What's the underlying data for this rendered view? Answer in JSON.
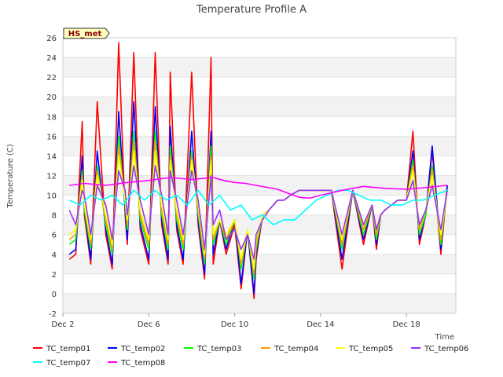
{
  "chart_data": {
    "type": "line",
    "title": "Temperature Profile A",
    "xlabel": "Time",
    "ylabel": "Temperature (C)",
    "badge": "HS_met",
    "x_ticks": [
      "Dec 2",
      "Dec 6",
      "Dec 10",
      "Dec 14",
      "Dec 18"
    ],
    "x_tick_days": [
      0,
      4,
      8,
      12,
      16
    ],
    "xlim": [
      0,
      18.3
    ],
    "ylim": [
      -2,
      26
    ],
    "y_ticks": [
      -2,
      0,
      2,
      4,
      6,
      8,
      10,
      12,
      14,
      16,
      18,
      20,
      22,
      24,
      26
    ],
    "grid": true,
    "legend_position": "bottom",
    "series": [
      {
        "name": "TC_temp01",
        "color": "#ff0000",
        "x": [
          0.3,
          0.6,
          0.9,
          1.0,
          1.3,
          1.6,
          2.0,
          2.3,
          2.6,
          2.9,
          3.0,
          3.3,
          3.6,
          4.0,
          4.3,
          4.6,
          4.9,
          5.0,
          5.3,
          5.6,
          6.0,
          6.3,
          6.6,
          6.9,
          7.0,
          7.3,
          7.6,
          8.0,
          8.3,
          8.6,
          8.9,
          9.0,
          9.3,
          9.6,
          10.0,
          10.3,
          10.6,
          11.0,
          11.5,
          12.0,
          12.5,
          13.0,
          13.5,
          14.0,
          14.4,
          14.6,
          14.8,
          15.0,
          15.3,
          15.6,
          16.0,
          16.3,
          16.6,
          16.9,
          17.2,
          17.6,
          17.9
        ],
        "y": [
          3.5,
          4.0,
          17.5,
          8.0,
          3.0,
          19.5,
          6.0,
          2.5,
          25.5,
          8.0,
          5.0,
          24.5,
          6.5,
          3.0,
          24.5,
          7.0,
          3.0,
          22.5,
          6.5,
          3.0,
          22.5,
          7.0,
          1.5,
          24.0,
          3.0,
          7.5,
          4.0,
          7.0,
          0.5,
          6.5,
          -0.5,
          3.5,
          8.0,
          8.5,
          9.5,
          9.5,
          10.0,
          10.5,
          10.5,
          10.5,
          10.5,
          2.5,
          10.5,
          5.0,
          9.0,
          4.5,
          8.0,
          8.5,
          9.0,
          9.5,
          9.5,
          16.5,
          5.0,
          8.0,
          14.5,
          4.0,
          11.0
        ]
      },
      {
        "name": "TC_temp02",
        "color": "#0000ff",
        "x": [
          0.3,
          0.6,
          0.9,
          1.0,
          1.3,
          1.6,
          2.0,
          2.3,
          2.6,
          2.9,
          3.0,
          3.3,
          3.6,
          4.0,
          4.3,
          4.6,
          4.9,
          5.0,
          5.3,
          5.6,
          6.0,
          6.3,
          6.6,
          6.9,
          7.0,
          7.3,
          7.6,
          8.0,
          8.3,
          8.6,
          8.9,
          9.0,
          9.3,
          9.6,
          10.0,
          10.3,
          10.6,
          11.0,
          11.5,
          12.0,
          12.5,
          13.0,
          13.5,
          14.0,
          14.4,
          14.6,
          14.8,
          15.0,
          15.3,
          15.6,
          16.0,
          16.3,
          16.6,
          16.9,
          17.2,
          17.6,
          17.9
        ],
        "y": [
          4.0,
          4.5,
          14.0,
          8.5,
          3.5,
          14.5,
          6.5,
          3.0,
          18.5,
          8.5,
          5.5,
          19.5,
          7.0,
          3.5,
          19.0,
          7.5,
          3.5,
          17.0,
          7.0,
          3.5,
          16.5,
          7.5,
          2.0,
          16.5,
          4.0,
          7.5,
          4.5,
          7.5,
          1.0,
          6.5,
          0.0,
          4.0,
          8.0,
          8.5,
          9.5,
          9.5,
          10.0,
          10.5,
          10.5,
          10.5,
          10.5,
          3.5,
          10.5,
          5.5,
          9.0,
          5.0,
          8.0,
          8.5,
          9.0,
          9.5,
          9.5,
          14.5,
          5.5,
          8.0,
          15.0,
          4.5,
          11.0
        ]
      },
      {
        "name": "TC_temp03",
        "color": "#00ff00",
        "x": [
          0.3,
          0.6,
          0.9,
          1.0,
          1.3,
          1.6,
          2.0,
          2.3,
          2.6,
          2.9,
          3.0,
          3.3,
          3.6,
          4.0,
          4.3,
          4.6,
          4.9,
          5.0,
          5.3,
          5.6,
          6.0,
          6.3,
          6.6,
          6.9,
          7.0,
          7.3,
          7.6,
          8.0,
          8.3,
          8.6,
          8.9,
          9.0,
          9.3,
          9.6,
          10.0,
          10.3,
          10.6,
          11.0,
          11.5,
          12.0,
          12.5,
          13.0,
          13.5,
          14.0,
          14.4,
          14.6,
          14.8,
          15.0,
          15.3,
          15.6,
          16.0,
          16.3,
          16.6,
          16.9,
          17.2,
          17.6,
          17.9
        ],
        "y": [
          5.0,
          5.5,
          12.5,
          8.5,
          4.5,
          13.0,
          7.0,
          4.0,
          16.0,
          9.0,
          6.5,
          16.5,
          7.5,
          4.5,
          16.5,
          8.0,
          4.5,
          15.0,
          7.5,
          4.5,
          14.5,
          8.0,
          3.0,
          15.0,
          5.0,
          7.5,
          5.0,
          7.5,
          2.5,
          6.5,
          1.5,
          4.5,
          8.0,
          8.5,
          9.5,
          9.5,
          10.0,
          10.5,
          10.5,
          10.5,
          10.5,
          4.5,
          10.5,
          6.0,
          9.0,
          5.5,
          8.0,
          8.5,
          9.0,
          9.5,
          9.5,
          13.5,
          6.0,
          8.0,
          13.0,
          5.0,
          10.5
        ]
      },
      {
        "name": "TC_temp04",
        "color": "#ff9900",
        "x": [
          0.3,
          0.6,
          0.9,
          1.0,
          1.3,
          1.6,
          2.0,
          2.3,
          2.6,
          2.9,
          3.0,
          3.3,
          3.6,
          4.0,
          4.3,
          4.6,
          4.9,
          5.0,
          5.3,
          5.6,
          6.0,
          6.3,
          6.6,
          6.9,
          7.0,
          7.3,
          7.6,
          8.0,
          8.3,
          8.6,
          8.9,
          9.0,
          9.3,
          9.6,
          10.0,
          10.3,
          10.6,
          11.0,
          11.5,
          12.0,
          12.5,
          13.0,
          13.5,
          14.0,
          14.4,
          14.6,
          14.8,
          15.0,
          15.3,
          15.6,
          16.0,
          16.3,
          16.6,
          16.9,
          17.2,
          17.6,
          17.9
        ],
        "y": [
          5.5,
          6.0,
          12.0,
          9.0,
          5.0,
          12.5,
          7.5,
          4.5,
          15.0,
          9.5,
          7.0,
          15.5,
          8.0,
          5.0,
          15.5,
          8.5,
          5.0,
          14.0,
          8.0,
          5.0,
          14.0,
          8.5,
          3.5,
          14.0,
          5.5,
          7.5,
          5.5,
          7.5,
          3.0,
          6.5,
          2.0,
          5.0,
          8.0,
          8.5,
          9.5,
          9.5,
          10.0,
          10.5,
          10.5,
          10.5,
          10.5,
          5.0,
          10.5,
          6.5,
          9.0,
          6.0,
          8.0,
          8.5,
          9.0,
          9.5,
          9.5,
          13.0,
          6.5,
          8.5,
          12.5,
          5.5,
          10.5
        ]
      },
      {
        "name": "TC_temp05",
        "color": "#ffff00",
        "x": [
          0.3,
          0.6,
          0.9,
          1.0,
          1.3,
          1.6,
          2.0,
          2.3,
          2.6,
          2.9,
          3.0,
          3.3,
          3.6,
          4.0,
          4.3,
          4.6,
          4.9,
          5.0,
          5.3,
          5.6,
          6.0,
          6.3,
          6.6,
          6.9,
          7.0,
          7.3,
          7.6,
          8.0,
          8.3,
          8.6,
          8.9,
          9.0,
          9.3,
          9.6,
          10.0,
          10.3,
          10.6,
          11.0,
          11.5,
          12.0,
          12.5,
          13.0,
          13.5,
          14.0,
          14.4,
          14.6,
          14.8,
          15.0,
          15.3,
          15.6,
          16.0,
          16.3,
          16.6,
          16.9,
          17.2,
          17.6,
          17.9
        ],
        "y": [
          6.0,
          6.5,
          11.5,
          9.0,
          5.5,
          12.0,
          8.0,
          5.0,
          14.0,
          9.5,
          7.5,
          14.5,
          8.5,
          5.5,
          14.5,
          9.0,
          5.5,
          13.5,
          8.5,
          5.5,
          13.5,
          9.0,
          4.0,
          13.5,
          6.0,
          7.5,
          6.0,
          7.5,
          3.5,
          6.5,
          2.5,
          5.5,
          8.0,
          8.5,
          9.5,
          9.5,
          10.0,
          10.5,
          10.5,
          10.5,
          10.5,
          5.5,
          10.5,
          7.0,
          9.0,
          6.5,
          8.0,
          8.5,
          9.0,
          9.5,
          9.5,
          12.5,
          7.0,
          8.5,
          12.0,
          6.0,
          10.5
        ]
      },
      {
        "name": "TC_temp06",
        "color": "#9933ff",
        "x": [
          0.3,
          0.6,
          0.9,
          1.0,
          1.3,
          1.6,
          2.0,
          2.3,
          2.6,
          2.9,
          3.0,
          3.3,
          3.6,
          4.0,
          4.3,
          4.6,
          4.9,
          5.0,
          5.3,
          5.6,
          6.0,
          6.3,
          6.6,
          6.9,
          7.0,
          7.3,
          7.6,
          8.0,
          8.3,
          8.6,
          8.9,
          9.0,
          9.3,
          9.6,
          10.0,
          10.3,
          10.6,
          11.0,
          11.5,
          12.0,
          12.5,
          13.0,
          13.5,
          14.0,
          14.4,
          14.6,
          14.8,
          15.0,
          15.3,
          15.6,
          16.0,
          16.3,
          16.6,
          16.9,
          17.2,
          17.6,
          17.9
        ],
        "y": [
          8.5,
          7.0,
          10.5,
          10.0,
          6.0,
          11.0,
          9.0,
          5.5,
          12.5,
          10.5,
          8.0,
          13.0,
          9.5,
          6.0,
          13.0,
          10.0,
          6.0,
          12.5,
          9.5,
          6.0,
          12.5,
          9.5,
          4.5,
          12.0,
          7.0,
          8.5,
          5.5,
          6.5,
          4.5,
          6.0,
          3.5,
          6.0,
          7.5,
          8.5,
          9.5,
          9.5,
          10.0,
          10.5,
          10.5,
          10.5,
          10.5,
          6.0,
          10.5,
          7.0,
          9.0,
          6.5,
          8.0,
          8.5,
          9.0,
          9.5,
          9.5,
          11.5,
          7.0,
          8.5,
          11.0,
          6.5,
          10.5
        ]
      },
      {
        "name": "TC_temp07",
        "color": "#00ffff",
        "x": [
          0.3,
          0.8,
          1.3,
          1.8,
          2.3,
          2.8,
          3.3,
          3.8,
          4.3,
          4.8,
          5.3,
          5.8,
          6.3,
          6.8,
          7.3,
          7.8,
          8.3,
          8.8,
          9.3,
          9.8,
          10.3,
          10.8,
          11.3,
          11.8,
          12.3,
          12.8,
          13.3,
          13.8,
          14.3,
          14.8,
          15.3,
          15.8,
          16.3,
          16.8,
          17.3,
          17.9
        ],
        "y": [
          9.5,
          9.0,
          10.0,
          9.5,
          10.0,
          9.0,
          10.5,
          9.5,
          10.5,
          9.5,
          10.0,
          9.0,
          10.5,
          9.0,
          10.0,
          8.5,
          9.0,
          7.5,
          8.0,
          7.0,
          7.5,
          7.5,
          8.5,
          9.5,
          10.0,
          10.5,
          10.5,
          10.0,
          9.5,
          9.5,
          9.0,
          9.0,
          9.5,
          9.5,
          10.0,
          10.5
        ]
      },
      {
        "name": "TC_temp08",
        "color": "#ff00ff",
        "x": [
          0.3,
          1.0,
          2.0,
          3.0,
          4.0,
          5.0,
          6.0,
          7.0,
          7.5,
          8.0,
          8.5,
          9.0,
          9.5,
          10.0,
          10.5,
          11.0,
          11.5,
          12.0,
          13.0,
          14.0,
          15.0,
          16.0,
          17.0,
          17.9
        ],
        "y": [
          11.0,
          11.2,
          11.0,
          11.3,
          11.5,
          11.8,
          11.6,
          11.8,
          11.5,
          11.3,
          11.2,
          11.0,
          10.8,
          10.6,
          10.2,
          9.8,
          9.7,
          10.0,
          10.5,
          10.9,
          10.7,
          10.6,
          10.8,
          11.0
        ]
      }
    ]
  }
}
